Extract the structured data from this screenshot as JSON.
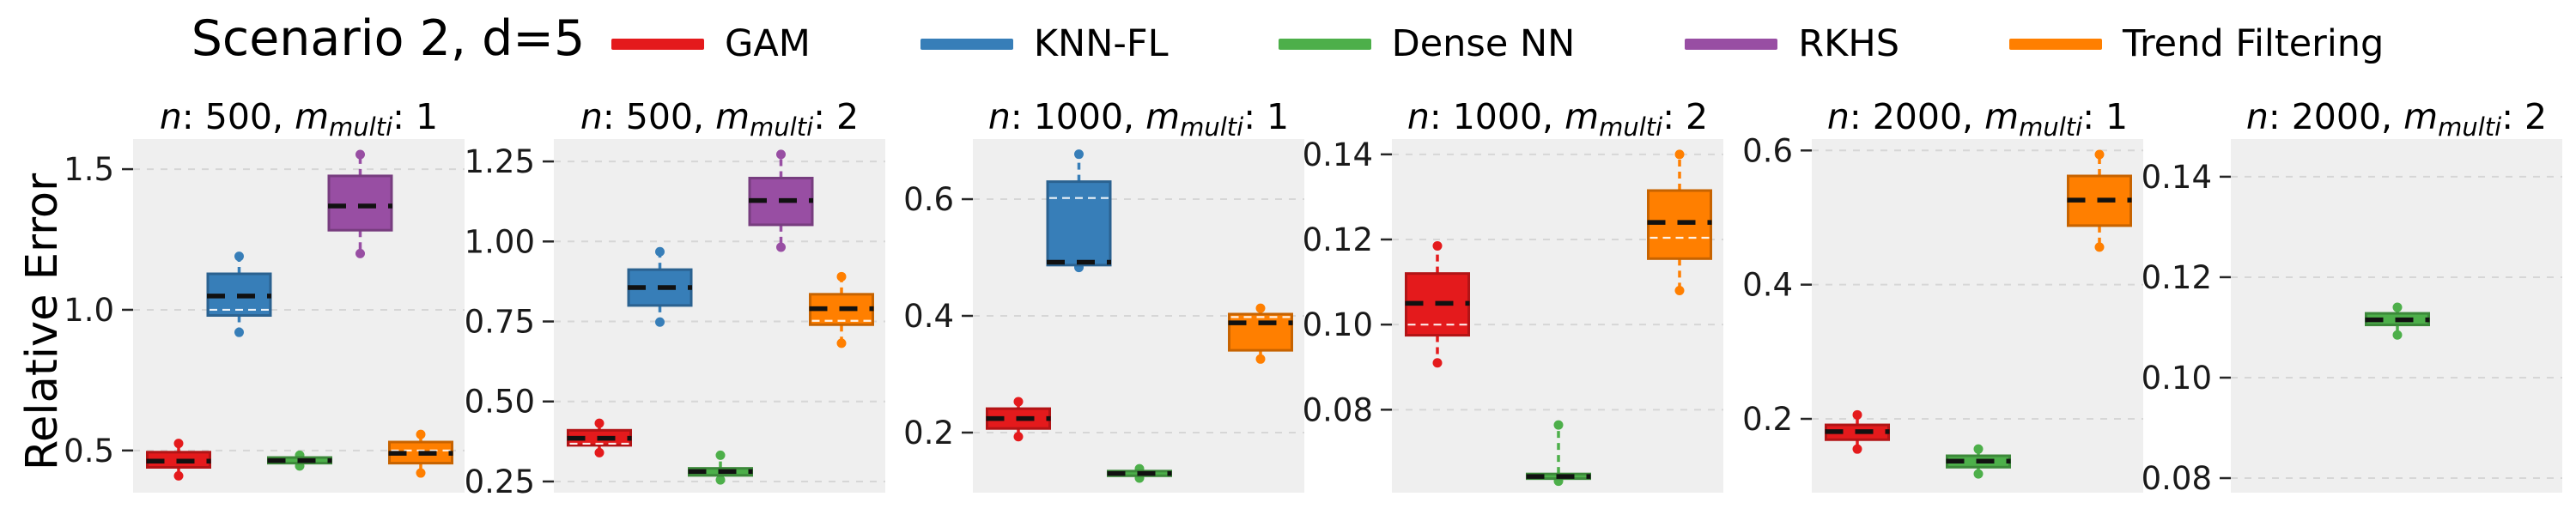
{
  "figure": {
    "title": "Scenario 2, d=5",
    "ylabel": "Relative Error",
    "background": "#ffffff",
    "plot_background": "#efefef",
    "gridline_color": "#d6d6d6",
    "median_color": "#111111",
    "mean_line_color": "#ffffff"
  },
  "legend": [
    {
      "label": "GAM",
      "color": "#e41a1c"
    },
    {
      "label": "KNN-FL",
      "color": "#377eb8"
    },
    {
      "label": "Dense NN",
      "color": "#4daf4a"
    },
    {
      "label": "RKHS",
      "color": "#984ea3"
    },
    {
      "label": "Trend Filtering",
      "color": "#ff7f00"
    }
  ],
  "chart_data": [
    {
      "type": "boxplot",
      "title_text": "n: 500, m_multi: 1",
      "title": {
        "n": "500",
        "m_multi": "1"
      },
      "ylim": [
        0.35,
        1.607
      ],
      "yticks": [
        0.5,
        1.0,
        1.5
      ],
      "ytick_labels": [
        "0.5",
        "1.0",
        "1.5"
      ],
      "series": [
        {
          "name": "GAM",
          "visible": true,
          "whislo": 0.41,
          "q1": 0.44,
          "med": 0.462,
          "q3": 0.494,
          "whishi": 0.525,
          "mean": null
        },
        {
          "name": "KNN-FL",
          "visible": true,
          "whislo": 0.92,
          "q1": 0.98,
          "med": 1.049,
          "q3": 1.128,
          "whishi": 1.19,
          "mean": 1.0
        },
        {
          "name": "Dense NN",
          "visible": true,
          "whislo": 0.445,
          "q1": 0.455,
          "med": 0.464,
          "q3": 0.475,
          "whishi": 0.483,
          "mean": null
        },
        {
          "name": "RKHS",
          "visible": true,
          "whislo": 1.2,
          "q1": 1.283,
          "med": 1.369,
          "q3": 1.476,
          "whishi": 1.552,
          "mean": null
        },
        {
          "name": "Trend Filtering",
          "visible": true,
          "whislo": 0.42,
          "q1": 0.455,
          "med": 0.49,
          "q3": 0.53,
          "whishi": 0.557,
          "mean": 0.5
        }
      ]
    },
    {
      "type": "boxplot",
      "title_text": "n: 500, m_multi: 2",
      "title": {
        "n": "500",
        "m_multi": "2"
      },
      "ylim": [
        0.215,
        1.32
      ],
      "yticks": [
        0.25,
        0.5,
        0.75,
        1.0,
        1.25
      ],
      "ytick_labels": [
        "0.25",
        "0.50",
        "0.75",
        "1.00",
        "1.25"
      ],
      "series": [
        {
          "name": "GAM",
          "visible": true,
          "whislo": 0.34,
          "q1": 0.363,
          "med": 0.385,
          "q3": 0.41,
          "whishi": 0.432,
          "mean": 0.368
        },
        {
          "name": "KNN-FL",
          "visible": true,
          "whislo": 0.748,
          "q1": 0.8,
          "med": 0.856,
          "q3": 0.912,
          "whishi": 0.968,
          "mean": null
        },
        {
          "name": "Dense NN",
          "visible": true,
          "whislo": 0.255,
          "q1": 0.269,
          "med": 0.281,
          "q3": 0.291,
          "whishi": 0.332,
          "mean": null
        },
        {
          "name": "RKHS",
          "visible": true,
          "whislo": 0.982,
          "q1": 1.052,
          "med": 1.128,
          "q3": 1.198,
          "whishi": 1.272,
          "mean": null
        },
        {
          "name": "Trend Filtering",
          "visible": true,
          "whislo": 0.682,
          "q1": 0.74,
          "med": 0.79,
          "q3": 0.835,
          "whishi": 0.89,
          "mean": 0.752
        }
      ]
    },
    {
      "type": "boxplot",
      "title_text": "n: 1000, m_multi: 1",
      "title": {
        "n": "1000",
        "m_multi": "1"
      },
      "ylim": [
        0.097,
        0.703
      ],
      "yticks": [
        0.2,
        0.4,
        0.6
      ],
      "ytick_labels": [
        "0.2",
        "0.4",
        "0.6"
      ],
      "series": [
        {
          "name": "GAM",
          "visible": true,
          "whislo": 0.193,
          "q1": 0.207,
          "med": 0.224,
          "q3": 0.241,
          "whishi": 0.253,
          "mean": null
        },
        {
          "name": "KNN-FL",
          "visible": true,
          "whislo": 0.483,
          "q1": 0.487,
          "med": 0.492,
          "q3": 0.63,
          "whishi": 0.677,
          "mean": 0.602
        },
        {
          "name": "Dense NN",
          "visible": true,
          "whislo": 0.122,
          "q1": 0.126,
          "med": 0.13,
          "q3": 0.134,
          "whishi": 0.138,
          "mean": null
        },
        {
          "name": "RKHS",
          "visible": false
        },
        {
          "name": "Trend Filtering",
          "visible": true,
          "whislo": 0.326,
          "q1": 0.341,
          "med": 0.388,
          "q3": 0.403,
          "whishi": 0.413,
          "mean": 0.398
        }
      ]
    },
    {
      "type": "boxplot",
      "title_text": "n: 1000, m_multi: 2",
      "title": {
        "n": "1000",
        "m_multi": "2"
      },
      "ylim": [
        0.0605,
        0.1436
      ],
      "yticks": [
        0.08,
        0.1,
        0.12,
        0.14
      ],
      "ytick_labels": [
        "0.08",
        "0.10",
        "0.12",
        "0.14"
      ],
      "series": [
        {
          "name": "GAM",
          "visible": true,
          "whislo": 0.091,
          "q1": 0.0975,
          "med": 0.105,
          "q3": 0.112,
          "whishi": 0.1185,
          "mean": 0.1
        },
        {
          "name": "KNN-FL",
          "visible": false
        },
        {
          "name": "Dense NN",
          "visible": true,
          "whislo": 0.0632,
          "q1": 0.0638,
          "med": 0.0643,
          "q3": 0.0649,
          "whishi": 0.0764,
          "mean": null
        },
        {
          "name": "RKHS",
          "visible": false
        },
        {
          "name": "Trend Filtering",
          "visible": true,
          "whislo": 0.108,
          "q1": 0.1155,
          "med": 0.124,
          "q3": 0.1315,
          "whishi": 0.14,
          "mean": 0.1204
        }
      ]
    },
    {
      "type": "boxplot",
      "title_text": "n: 2000, m_multi: 1",
      "title": {
        "n": "2000",
        "m_multi": "1"
      },
      "ylim": [
        0.09,
        0.617
      ],
      "yticks": [
        0.2,
        0.4,
        0.6
      ],
      "ytick_labels": [
        "0.2",
        "0.4",
        "0.6"
      ],
      "series": [
        {
          "name": "GAM",
          "visible": true,
          "whislo": 0.155,
          "q1": 0.169,
          "med": 0.181,
          "q3": 0.191,
          "whishi": 0.206,
          "mean": null
        },
        {
          "name": "KNN-FL",
          "visible": false
        },
        {
          "name": "Dense NN",
          "visible": true,
          "whislo": 0.118,
          "q1": 0.128,
          "med": 0.137,
          "q3": 0.145,
          "whishi": 0.155,
          "mean": null
        },
        {
          "name": "RKHS",
          "visible": false
        },
        {
          "name": "Trend Filtering",
          "visible": true,
          "whislo": 0.456,
          "q1": 0.488,
          "med": 0.526,
          "q3": 0.562,
          "whishi": 0.594,
          "mean": null
        }
      ]
    },
    {
      "type": "boxplot",
      "title_text": "n: 2000, m_multi: 2",
      "title": {
        "n": "2000",
        "m_multi": "2"
      },
      "ylim": [
        0.0771,
        0.1475
      ],
      "yticks": [
        0.08,
        0.1,
        0.12,
        0.14
      ],
      "ytick_labels": [
        "0.08",
        "0.10",
        "0.12",
        "0.14"
      ],
      "series": [
        {
          "name": "GAM",
          "visible": false
        },
        {
          "name": "KNN-FL",
          "visible": false
        },
        {
          "name": "Dense NN",
          "visible": true,
          "whislo": 0.1085,
          "q1": 0.1105,
          "med": 0.1115,
          "q3": 0.1128,
          "whishi": 0.114,
          "mean": null
        },
        {
          "name": "RKHS",
          "visible": false
        },
        {
          "name": "Trend Filtering",
          "visible": false
        }
      ]
    }
  ]
}
